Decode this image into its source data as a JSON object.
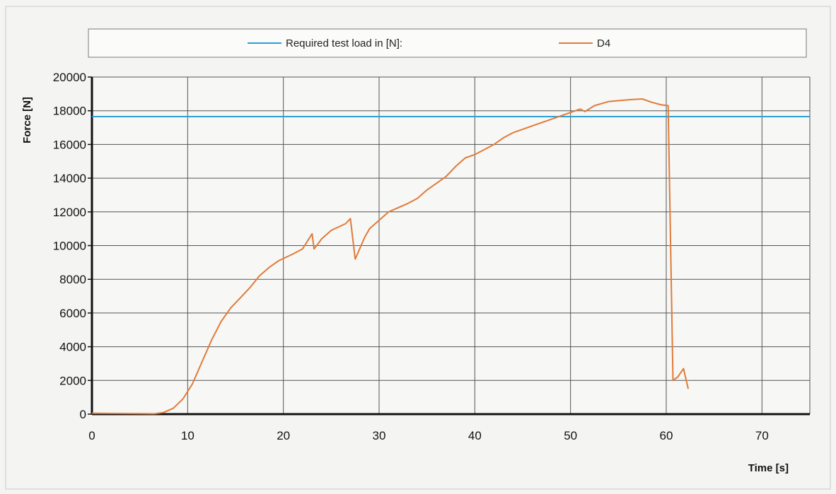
{
  "chart_data": {
    "type": "line",
    "title": "",
    "xlabel": "Time [s]",
    "ylabel": "Force [N]",
    "xlim": [
      0,
      75
    ],
    "ylim": [
      0,
      20000
    ],
    "x_ticks": [
      0,
      10,
      20,
      30,
      40,
      50,
      60,
      70
    ],
    "y_ticks": [
      0,
      2000,
      4000,
      6000,
      8000,
      10000,
      12000,
      14000,
      16000,
      18000,
      20000
    ],
    "grid": true,
    "legend_position": "top",
    "series": [
      {
        "name": "Required test load in [N]:",
        "color": "#2a9fd6",
        "points": [
          [
            0,
            17650
          ],
          [
            75,
            17650
          ]
        ]
      },
      {
        "name": "D4",
        "color": "#e07b39",
        "points": [
          [
            0,
            50
          ],
          [
            5,
            30
          ],
          [
            6.5,
            20
          ],
          [
            7.5,
            100
          ],
          [
            8.5,
            350
          ],
          [
            9.5,
            900
          ],
          [
            10.5,
            1800
          ],
          [
            11.5,
            3100
          ],
          [
            12.5,
            4400
          ],
          [
            13.5,
            5500
          ],
          [
            14.5,
            6300
          ],
          [
            15.5,
            6900
          ],
          [
            16.5,
            7500
          ],
          [
            17.5,
            8200
          ],
          [
            18.5,
            8700
          ],
          [
            19.5,
            9100
          ],
          [
            21,
            9500
          ],
          [
            22,
            9800
          ],
          [
            23,
            10700
          ],
          [
            23.2,
            9800
          ],
          [
            24,
            10400
          ],
          [
            25,
            10900
          ],
          [
            26.5,
            11300
          ],
          [
            27,
            11600
          ],
          [
            27.5,
            9200
          ],
          [
            28.5,
            10500
          ],
          [
            29,
            11000
          ],
          [
            30,
            11500
          ],
          [
            31,
            12000
          ],
          [
            33,
            12500
          ],
          [
            34,
            12800
          ],
          [
            35,
            13300
          ],
          [
            36,
            13700
          ],
          [
            37,
            14100
          ],
          [
            38,
            14700
          ],
          [
            39,
            15200
          ],
          [
            40,
            15400
          ],
          [
            41,
            15700
          ],
          [
            42,
            16000
          ],
          [
            43,
            16400
          ],
          [
            44,
            16700
          ],
          [
            45,
            16900
          ],
          [
            47,
            17300
          ],
          [
            49,
            17700
          ],
          [
            51,
            18100
          ],
          [
            51.5,
            17950
          ],
          [
            52.5,
            18300
          ],
          [
            54,
            18550
          ],
          [
            56,
            18650
          ],
          [
            57.5,
            18700
          ],
          [
            58.5,
            18500
          ],
          [
            59.5,
            18350
          ],
          [
            60.2,
            18300
          ],
          [
            60.7,
            2000
          ],
          [
            61.2,
            2200
          ],
          [
            61.8,
            2700
          ],
          [
            62.3,
            1500
          ]
        ]
      }
    ]
  }
}
